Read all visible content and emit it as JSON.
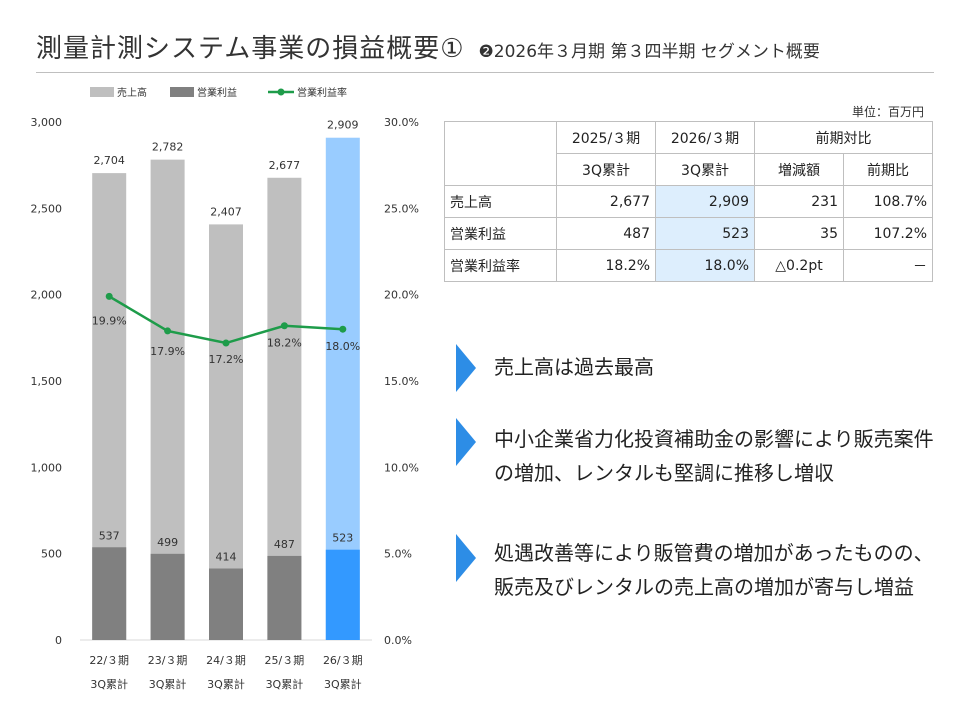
{
  "header": {
    "title": "測量計測システム事業の損益概要①",
    "subtitle": "❷2026年３月期 第３四半期 セグメント概要"
  },
  "colors": {
    "sales_bar": "#bfbfbf",
    "profit_bar": "#808080",
    "sales_highlight": "#99ccff",
    "profit_highlight": "#3399ff",
    "margin_line": "#1e9c4a",
    "arrow": "#2d8de6",
    "table_highlight": "#ddeefd"
  },
  "chart_data": {
    "type": "bar",
    "categories": [
      [
        "22/３期",
        "3Q累計"
      ],
      [
        "23/３期",
        "3Q累計"
      ],
      [
        "24/３期",
        "3Q累計"
      ],
      [
        "25/３期",
        "3Q累計"
      ],
      [
        "26/３期",
        "3Q累計"
      ]
    ],
    "series": [
      {
        "name": "売上高",
        "axis": "left",
        "kind": "bar",
        "values": [
          2704,
          2782,
          2407,
          2677,
          2909
        ],
        "labels": [
          "2,704",
          "2,782",
          "2,407",
          "2,677",
          "2,909"
        ]
      },
      {
        "name": "営業利益",
        "axis": "left",
        "kind": "bar",
        "values": [
          537,
          499,
          414,
          487,
          523
        ],
        "labels": [
          "537",
          "499",
          "414",
          "487",
          "523"
        ]
      },
      {
        "name": "営業利益率",
        "axis": "right",
        "kind": "line",
        "values": [
          19.9,
          17.9,
          17.2,
          18.2,
          18.0
        ],
        "labels": [
          "19.9%",
          "17.9%",
          "17.2%",
          "18.2%",
          "18.0%"
        ]
      }
    ],
    "highlight_index": 4,
    "left_axis": {
      "min": 0,
      "max": 3000,
      "ticks": [
        0,
        500,
        1000,
        1500,
        2000,
        2500,
        3000
      ],
      "tick_labels": [
        "0",
        "500",
        "1,000",
        "1,500",
        "2,000",
        "2,500",
        "3,000"
      ]
    },
    "right_axis": {
      "min": 0,
      "max": 30,
      "ticks": [
        0,
        5,
        10,
        15,
        20,
        25,
        30
      ],
      "tick_labels": [
        "0.0%",
        "5.0%",
        "10.0%",
        "15.0%",
        "20.0%",
        "25.0%",
        "30.0%"
      ]
    },
    "legend": [
      "売上高",
      "営業利益",
      "営業利益率"
    ],
    "legend_position": "top"
  },
  "table": {
    "unit": "単位：百万円",
    "headers": {
      "col1_line1": "2025/３期",
      "col1_line2": "3Q累計",
      "col2_line1": "2026/３期",
      "col2_line2": "3Q累計",
      "compare": "前期対比",
      "diff": "増減額",
      "ratio": "前期比"
    },
    "rows": [
      {
        "label": "売上高",
        "prev": "2,677",
        "curr": "2,909",
        "diff": "231",
        "ratio": "108.7%"
      },
      {
        "label": "営業利益",
        "prev": "487",
        "curr": "523",
        "diff": "35",
        "ratio": "107.2%"
      },
      {
        "label": "営業利益率",
        "prev": "18.2%",
        "curr": "18.0%",
        "diff": "△0.2pt",
        "ratio": "－"
      }
    ]
  },
  "points": [
    {
      "text": "売上高は過去最高"
    },
    {
      "text": "中小企業省力化投資補助金の影響により販売案件の増加、レンタルも堅調に推移し増収"
    },
    {
      "text": "処遇改善等により販管費の増加があったものの、販売及びレンタルの売上高の増加が寄与し増益"
    }
  ]
}
